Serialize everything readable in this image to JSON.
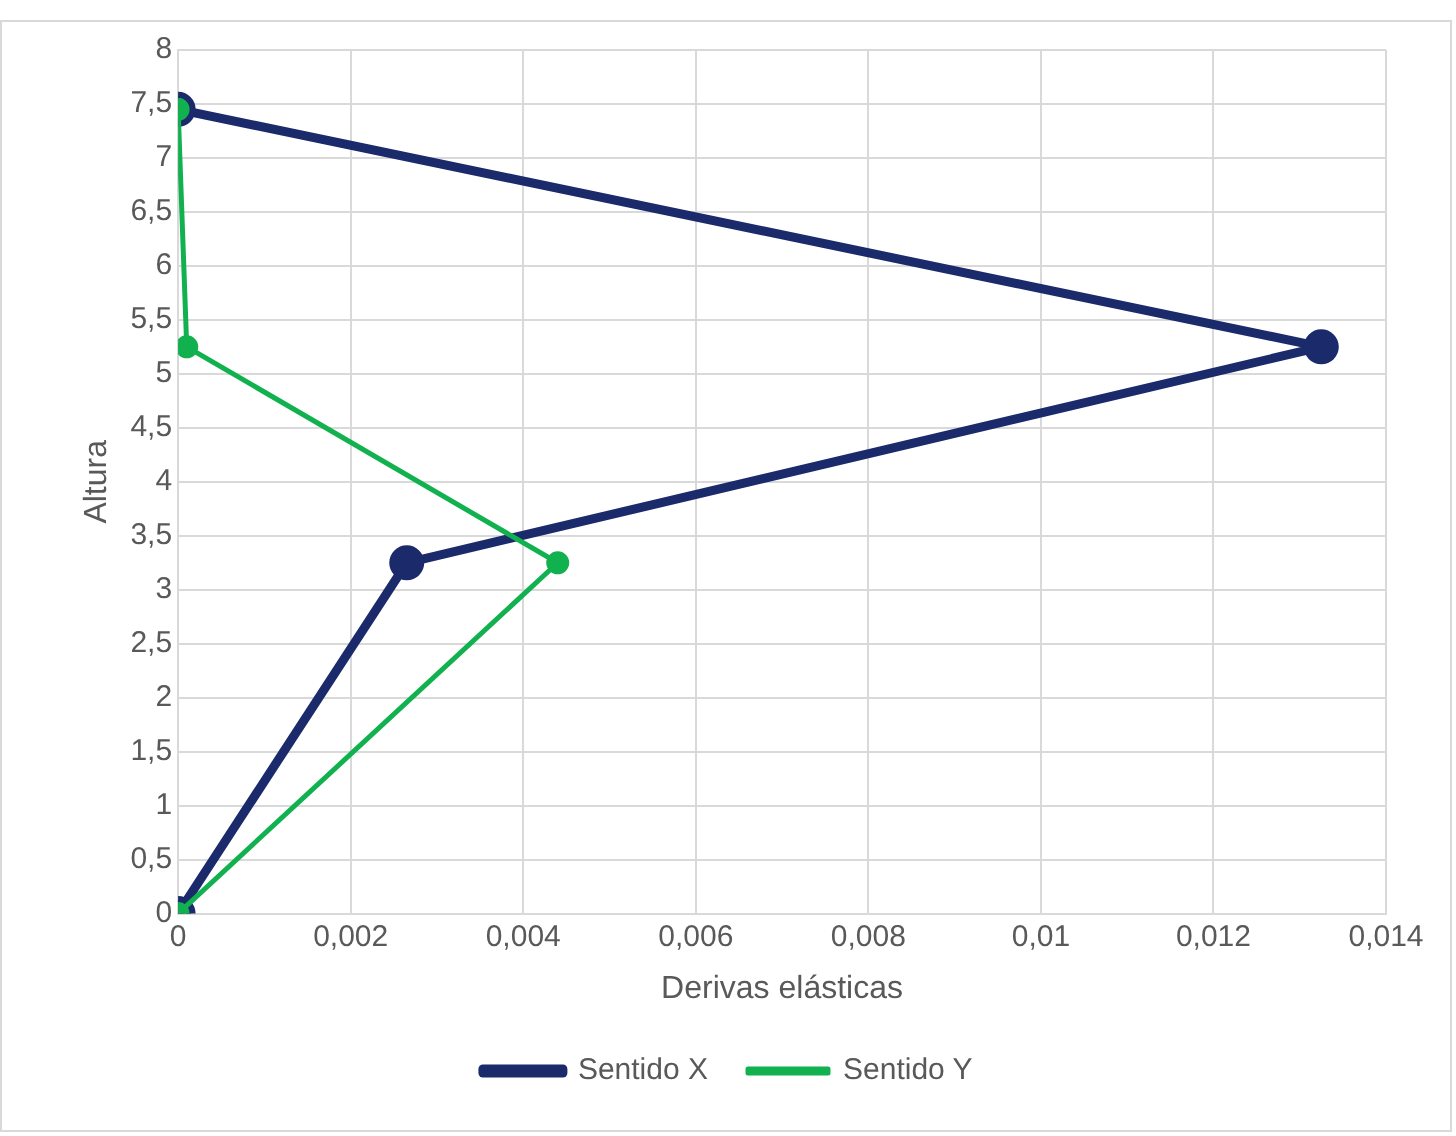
{
  "chart_data": {
    "type": "line",
    "xlabel": "Derivas elásticas",
    "ylabel": "Altura",
    "series": [
      {
        "name": "Sentido X",
        "color": "#1b2a6b",
        "x": [
          0,
          0.00265,
          0.01325,
          0
        ],
        "values": [
          0,
          3.25,
          5.25,
          7.45
        ]
      },
      {
        "name": "Sentido Y",
        "color": "#12b14f",
        "x": [
          0,
          0.0044,
          0.0001,
          0
        ],
        "values": [
          0,
          3.25,
          5.25,
          7.45
        ]
      }
    ],
    "xlim": [
      0,
      0.014
    ],
    "xticks": [
      0,
      {
        "value": 0.002,
        "label": "0,002"
      },
      {
        "value": 0.004,
        "label": "0,004"
      },
      {
        "value": 0.006,
        "label": "0,006"
      },
      {
        "value": 0.008,
        "label": "0,008"
      },
      {
        "value": 0.01,
        "label": "0,01"
      },
      {
        "value": 0.012,
        "label": "0,012"
      },
      {
        "value": 0.014,
        "label": "0,014"
      }
    ],
    "ylim": [
      0,
      8
    ],
    "yticks": [
      0,
      {
        "value": 0.5,
        "label": "0,5"
      },
      1,
      {
        "value": 1.5,
        "label": "1,5"
      },
      2,
      {
        "value": 2.5,
        "label": "2,5"
      },
      3,
      {
        "value": 3.5,
        "label": "3,5"
      },
      4,
      {
        "value": 4.5,
        "label": "4,5"
      },
      5,
      {
        "value": 5.5,
        "label": "5,5"
      },
      6,
      {
        "value": 6.5,
        "label": "6,5"
      },
      7,
      {
        "value": 7.5,
        "label": "7,5"
      },
      8
    ],
    "grid": true,
    "legend": "bottom",
    "marker": "circle",
    "line_style": "solid"
  }
}
